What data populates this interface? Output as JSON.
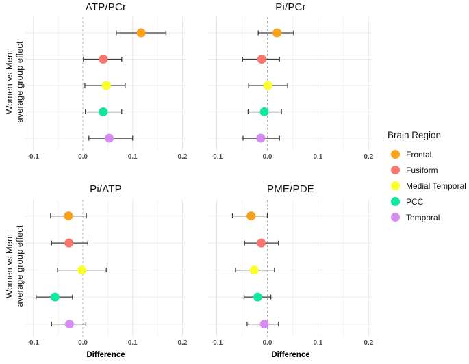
{
  "figure": {
    "y_axis_label_line1": "Women vs Men:",
    "y_axis_label_line2": "average group effect",
    "x_axis_label": "Difference"
  },
  "legend": {
    "title": "Brain Region",
    "position": "right",
    "items": [
      {
        "label": "Frontal",
        "color": "#F9A11B"
      },
      {
        "label": "Fusiform",
        "color": "#F8766D"
      },
      {
        "label": "Medial Temporal",
        "color": "#FBFF2C"
      },
      {
        "label": "PCC",
        "color": "#12E7A0"
      },
      {
        "label": "Temporal",
        "color": "#D58CF0"
      }
    ]
  },
  "styles": {
    "error_bar_color": "#3d3d3d",
    "zero_line_color": "#b4b4b4",
    "major_grid_color": "#e7e7e7",
    "minor_grid_color": "#f2f2f2",
    "row_grid_color": "#ebebeb"
  },
  "chart_data": [
    {
      "type": "scatter",
      "title": "ATP/PCr",
      "xlabel": "",
      "ylabel": "Women vs Men: average group effect",
      "xlim": [
        -0.117,
        0.209
      ],
      "xticks": [
        -0.1,
        0.0,
        0.1,
        0.2
      ],
      "grid": true,
      "zero_reference_line": true,
      "points": [
        {
          "region": "Frontal",
          "estimate": 0.117,
          "ci_lower": 0.067,
          "ci_upper": 0.167
        },
        {
          "region": "Fusiform",
          "estimate": 0.041,
          "ci_lower": 0.001,
          "ci_upper": 0.078
        },
        {
          "region": "Medial Temporal",
          "estimate": 0.047,
          "ci_lower": 0.004,
          "ci_upper": 0.085
        },
        {
          "region": "PCC",
          "estimate": 0.041,
          "ci_lower": 0.005,
          "ci_upper": 0.078
        },
        {
          "region": "Temporal",
          "estimate": 0.053,
          "ci_lower": 0.012,
          "ci_upper": 0.1
        }
      ]
    },
    {
      "type": "scatter",
      "title": "Pi/PCr",
      "xlabel": "",
      "ylabel": "Women vs Men: average group effect",
      "xlim": [
        -0.117,
        0.209
      ],
      "xticks": [
        -0.1,
        0.0,
        0.1,
        0.2
      ],
      "grid": true,
      "zero_reference_line": true,
      "points": [
        {
          "region": "Frontal",
          "estimate": 0.019,
          "ci_lower": -0.018,
          "ci_upper": 0.052
        },
        {
          "region": "Fusiform",
          "estimate": -0.011,
          "ci_lower": -0.049,
          "ci_upper": 0.024
        },
        {
          "region": "Medial Temporal",
          "estimate": 0.001,
          "ci_lower": -0.037,
          "ci_upper": 0.04
        },
        {
          "region": "PCC",
          "estimate": -0.006,
          "ci_lower": -0.038,
          "ci_upper": 0.028
        },
        {
          "region": "Temporal",
          "estimate": -0.013,
          "ci_lower": -0.048,
          "ci_upper": 0.024
        }
      ]
    },
    {
      "type": "scatter",
      "title": "Pi/ATP",
      "xlabel": "Difference",
      "ylabel": "Women vs Men: average group effect",
      "xlim": [
        -0.117,
        0.209
      ],
      "xticks": [
        -0.1,
        0.0,
        0.1,
        0.2
      ],
      "grid": true,
      "zero_reference_line": true,
      "points": [
        {
          "region": "Frontal",
          "estimate": -0.029,
          "ci_lower": -0.065,
          "ci_upper": 0.007
        },
        {
          "region": "Fusiform",
          "estimate": -0.028,
          "ci_lower": -0.063,
          "ci_upper": 0.01
        },
        {
          "region": "Medial Temporal",
          "estimate": -0.002,
          "ci_lower": -0.051,
          "ci_upper": 0.047
        },
        {
          "region": "PCC",
          "estimate": -0.056,
          "ci_lower": -0.094,
          "ci_upper": -0.021
        },
        {
          "region": "Temporal",
          "estimate": -0.027,
          "ci_lower": -0.063,
          "ci_upper": 0.006
        }
      ]
    },
    {
      "type": "scatter",
      "title": "PME/PDE",
      "xlabel": "Difference",
      "ylabel": "Women vs Men: average group effect",
      "xlim": [
        -0.117,
        0.209
      ],
      "xticks": [
        -0.1,
        0.0,
        0.1,
        0.2
      ],
      "grid": true,
      "zero_reference_line": true,
      "points": [
        {
          "region": "Frontal",
          "estimate": -0.032,
          "ci_lower": -0.069,
          "ci_upper": 0.0
        },
        {
          "region": "Fusiform",
          "estimate": -0.012,
          "ci_lower": -0.045,
          "ci_upper": 0.022
        },
        {
          "region": "Medial Temporal",
          "estimate": -0.026,
          "ci_lower": -0.063,
          "ci_upper": 0.014
        },
        {
          "region": "PCC",
          "estimate": -0.019,
          "ci_lower": -0.046,
          "ci_upper": 0.007
        },
        {
          "region": "Temporal",
          "estimate": -0.006,
          "ci_lower": -0.04,
          "ci_upper": 0.022
        }
      ]
    }
  ]
}
